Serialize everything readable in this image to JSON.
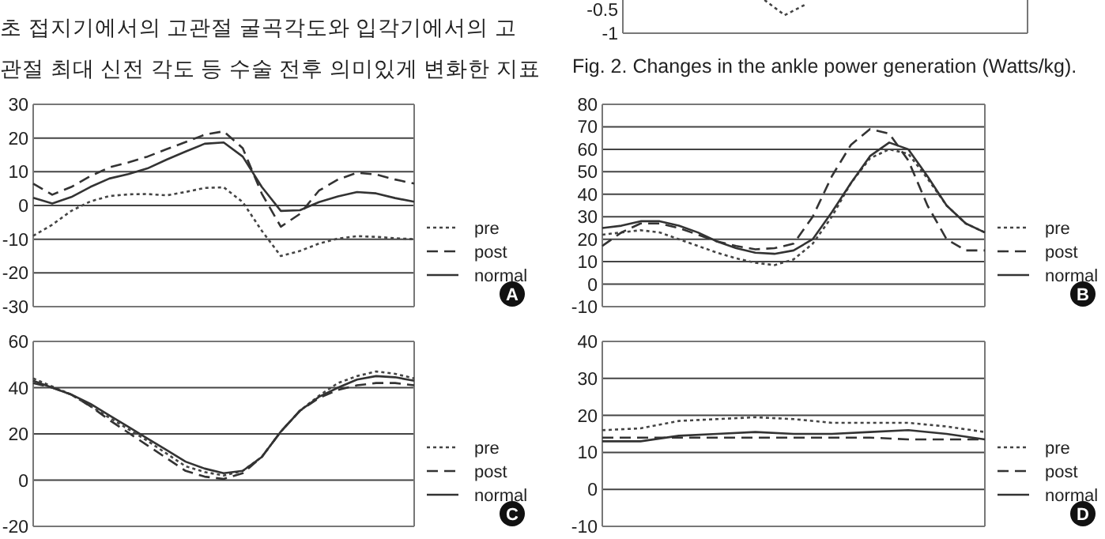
{
  "chart_data": [
    {
      "type": "other",
      "annotations": [
        "초 접지기에서의 고관절 굴곡각도와 입각기에서의 고",
        "관절 최대 신전 각도 등 수술 전후 의미있게 변화한 지표"
      ]
    },
    {
      "type": "line",
      "categories": [
        null,
        null,
        null,
        null,
        null,
        null,
        null,
        null,
        null,
        null,
        null,
        null,
        null,
        null,
        null,
        null,
        null,
        null,
        null,
        null,
        null
      ],
      "ylim": [
        -1,
        -0.3
      ],
      "yticks": [
        -1,
        -0.5
      ],
      "tick_labels": "y",
      "annotations": [
        "Fig. 2. Changes in the ankle power generation (Watts/kg)."
      ],
      "series": [
        {
          "color": "#444444",
          "line_style": "dotted",
          "values": [
            null,
            null,
            null,
            null,
            null,
            null,
            null,
            -0.3,
            -0.62,
            -0.4,
            null,
            null,
            null,
            null,
            null,
            null,
            null,
            null,
            null,
            null,
            null
          ]
        }
      ]
    },
    {
      "type": "line",
      "categories": [
        null,
        null,
        null,
        null,
        null,
        null,
        null,
        null,
        null,
        null,
        null,
        null,
        null,
        null,
        null,
        null,
        null,
        null,
        null,
        null,
        null
      ],
      "ylim": [
        -30,
        30
      ],
      "yticks": [
        -30,
        -20,
        -10,
        0,
        10,
        20,
        30
      ],
      "tick_labels": "y",
      "grid": "y",
      "legend": "right",
      "annotations": [
        "A"
      ],
      "series": [
        {
          "name": "pre",
          "color": "#444444",
          "line_style": "dotted",
          "values": [
            -9,
            -5.7,
            -1.6,
            1.2,
            2.8,
            3.3,
            3.4,
            3,
            4,
            5.2,
            5.4,
            1,
            -7.5,
            -15,
            -13.5,
            -11.3,
            -9.8,
            -9.1,
            -9.3,
            -9.7,
            -10
          ]
        },
        {
          "name": "post",
          "color": "#333333",
          "line_style": "dashed",
          "values": [
            6.5,
            3.2,
            5.5,
            8.7,
            11.3,
            12.8,
            14.5,
            16.7,
            18.8,
            21,
            22,
            17,
            3.5,
            -6.3,
            -2.5,
            4.4,
            7.7,
            9.7,
            9.2,
            7.7,
            6.5
          ]
        },
        {
          "name": "normal",
          "color": "#333333",
          "line_style": "solid",
          "values": [
            2.3,
            0.6,
            2.5,
            5.5,
            8,
            9.3,
            11,
            13.6,
            16,
            18.3,
            18.7,
            14.5,
            5.5,
            -1.6,
            -1.4,
            1,
            2.7,
            4,
            3.6,
            2.2,
            1.1
          ]
        }
      ]
    },
    {
      "type": "line",
      "categories": [
        null,
        null,
        null,
        null,
        null,
        null,
        null,
        null,
        null,
        null,
        null,
        null,
        null,
        null,
        null,
        null,
        null,
        null,
        null,
        null,
        null
      ],
      "ylim": [
        -10,
        80
      ],
      "yticks": [
        -10,
        0,
        10,
        20,
        30,
        40,
        50,
        60,
        70,
        80
      ],
      "tick_labels": "y",
      "grid": "y",
      "legend": "right",
      "annotations": [
        "B"
      ],
      "series": [
        {
          "name": "pre",
          "color": "#444444",
          "line_style": "dotted",
          "values": [
            22,
            23,
            24,
            23,
            20,
            17,
            14,
            11.5,
            9.5,
            8.5,
            11,
            18,
            30,
            45,
            56,
            60,
            58,
            47,
            35,
            27,
            23
          ]
        },
        {
          "name": "post",
          "color": "#333333",
          "line_style": "dashed",
          "values": [
            17,
            23,
            27,
            27,
            25,
            22,
            19,
            17,
            15.5,
            16,
            18,
            30,
            48,
            62,
            69,
            67,
            55,
            35,
            20,
            15,
            15
          ]
        },
        {
          "name": "normal",
          "color": "#333333",
          "line_style": "solid",
          "values": [
            25,
            26,
            28,
            28,
            26,
            23,
            19,
            16,
            14,
            13.5,
            15,
            20,
            32,
            45,
            57,
            63,
            60,
            48,
            35,
            27,
            23
          ]
        }
      ]
    },
    {
      "type": "line",
      "categories": [
        null,
        null,
        null,
        null,
        null,
        null,
        null,
        null,
        null,
        null,
        null,
        null,
        null,
        null,
        null,
        null,
        null,
        null,
        null,
        null,
        null
      ],
      "ylim": [
        -20,
        60
      ],
      "yticks": [
        -20,
        0,
        20,
        40,
        60
      ],
      "tick_labels": "y",
      "grid": "y",
      "legend": "right",
      "annotations": [
        "C"
      ],
      "series": [
        {
          "name": "pre",
          "color": "#444444",
          "line_style": "dotted",
          "values": [
            44,
            40.5,
            37,
            32,
            27,
            22,
            17,
            11.5,
            6,
            3.5,
            2,
            4,
            10,
            21,
            30,
            36.5,
            42,
            45,
            47,
            46,
            44
          ]
        },
        {
          "name": "post",
          "color": "#333333",
          "line_style": "dashed",
          "values": [
            42,
            40,
            37,
            32,
            26,
            20.5,
            15,
            9.5,
            4,
            1.5,
            0.5,
            3,
            10,
            21,
            30,
            35.5,
            39,
            41,
            42,
            42,
            41
          ]
        },
        {
          "name": "normal",
          "color": "#333333",
          "line_style": "solid",
          "values": [
            43,
            40,
            37,
            33,
            28,
            23,
            18,
            13,
            8,
            5,
            3,
            4,
            10,
            21,
            30,
            36,
            40,
            43.5,
            45,
            44.5,
            43
          ]
        }
      ]
    },
    {
      "type": "line",
      "categories": [
        null,
        null,
        null,
        null,
        null,
        null,
        null,
        null,
        null,
        null,
        null
      ],
      "ylim": [
        -10,
        40
      ],
      "yticks": [
        -10,
        0,
        10,
        20,
        30,
        40
      ],
      "tick_labels": "y",
      "grid": "y",
      "legend": "right",
      "annotations": [
        "D"
      ],
      "series": [
        {
          "name": "pre",
          "color": "#444444",
          "line_style": "dotted",
          "values": [
            16,
            16.5,
            18.5,
            19,
            19.5,
            19,
            18,
            18,
            18,
            17,
            15.5
          ]
        },
        {
          "name": "post",
          "color": "#333333",
          "line_style": "dashed",
          "values": [
            14,
            14,
            14,
            14,
            14,
            14,
            14,
            14,
            13.5,
            13.5,
            13.5
          ]
        },
        {
          "name": "normal",
          "color": "#333333",
          "line_style": "solid",
          "values": [
            13,
            13,
            14.5,
            15,
            15.5,
            15,
            15,
            15.5,
            16,
            15,
            13.5
          ]
        }
      ]
    }
  ]
}
